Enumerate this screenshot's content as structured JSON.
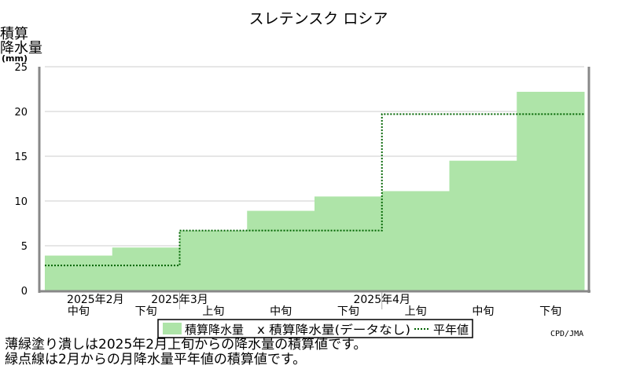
{
  "chart_data": {
    "type": "area",
    "title": "スレテンスク ロシア",
    "ylabel_lines": [
      "積算",
      "降水量",
      "(mm)"
    ],
    "ylim": [
      0,
      25
    ],
    "yticks": [
      0,
      5,
      10,
      15,
      20,
      25
    ],
    "periods": [
      {
        "month": "2025年2月",
        "dekad": "中旬"
      },
      {
        "month": "2025年2月",
        "dekad": "下旬"
      },
      {
        "month": "2025年3月",
        "dekad": "上旬"
      },
      {
        "month": "2025年3月",
        "dekad": "中旬"
      },
      {
        "month": "2025年3月",
        "dekad": "下旬"
      },
      {
        "month": "2025年4月",
        "dekad": "上旬"
      },
      {
        "month": "2025年4月",
        "dekad": "中旬"
      },
      {
        "month": "2025年4月",
        "dekad": "下旬"
      }
    ],
    "month_labels": [
      "2025年2月",
      "2025年3月",
      "2025年4月"
    ],
    "dekad_labels": [
      "中旬",
      "下旬",
      "上旬",
      "中旬",
      "下旬",
      "上旬",
      "中旬",
      "下旬"
    ],
    "series": [
      {
        "name": "積算降水量",
        "values": [
          3.9,
          4.8,
          6.7,
          8.9,
          10.5,
          11.1,
          14.5,
          22.2
        ],
        "color": "#aee4a8"
      },
      {
        "name": "平年値",
        "months": [
          {
            "start": 0,
            "end": 2,
            "value": 2.8
          },
          {
            "start": 2,
            "end": 5,
            "value": 6.7
          },
          {
            "start": 5,
            "end": 8,
            "value": 19.7
          }
        ],
        "color": "#006400"
      }
    ],
    "legend": {
      "area_label": "積算降水量",
      "missing_label": "x 積算降水量(データなし)",
      "normal_label": "平年値"
    },
    "grid": true
  },
  "notes": [
    "薄緑塗り潰しは2025年2月上旬からの降水量の積算値です。",
    "緑点線は2月からの月降水量平年値の積算値です。"
  ],
  "credit": "CPD/JMA"
}
